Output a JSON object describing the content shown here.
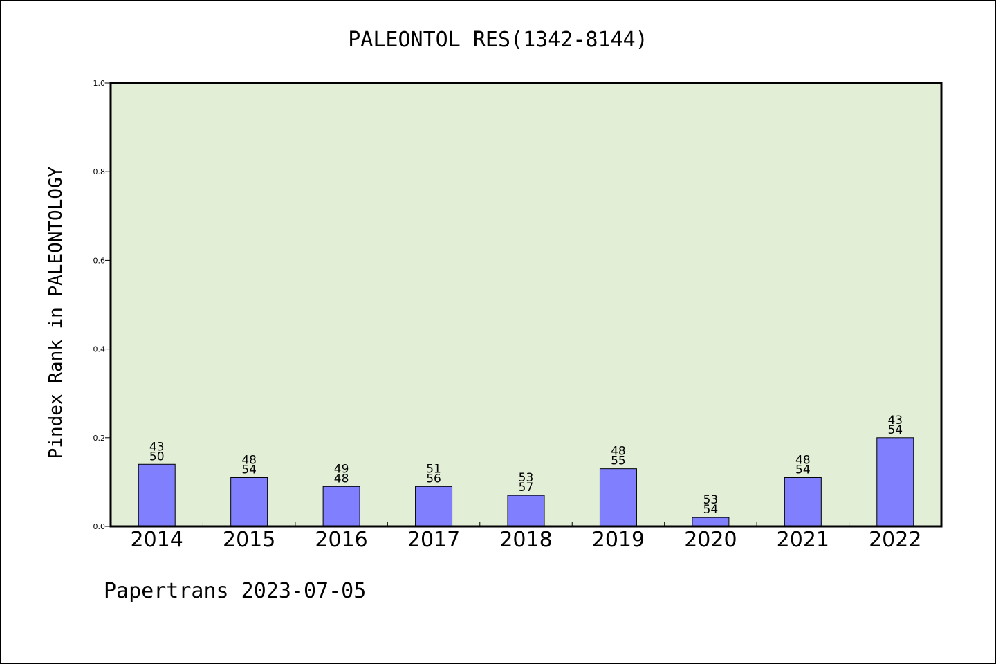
{
  "chart_data": {
    "type": "bar",
    "title": "PALEONTOL RES(1342-8144)",
    "ylabel": "Pindex Rank in PALEONTOLOGY",
    "xlabel": "",
    "ylim": [
      0,
      1.0
    ],
    "yticks": [
      "0.0",
      "0.2",
      "0.4",
      "0.6",
      "0.8",
      "1.0"
    ],
    "categories": [
      "2014",
      "2015",
      "2016",
      "2017",
      "2018",
      "2019",
      "2020",
      "2021",
      "2022"
    ],
    "values": [
      0.14,
      0.11,
      0.09,
      0.09,
      0.07,
      0.13,
      0.02,
      0.11,
      0.2
    ],
    "labels_top": [
      "43",
      "48",
      "49",
      "51",
      "53",
      "48",
      "53",
      "48",
      "43"
    ],
    "labels_bottom": [
      "50",
      "54",
      "48",
      "56",
      "57",
      "55",
      "54",
      "54",
      "54"
    ],
    "grid": false,
    "legend": "none",
    "colors": {
      "bar": "#8080ff",
      "plot_background": "#e2efd6"
    }
  },
  "footer": "Papertrans 2023-07-05"
}
